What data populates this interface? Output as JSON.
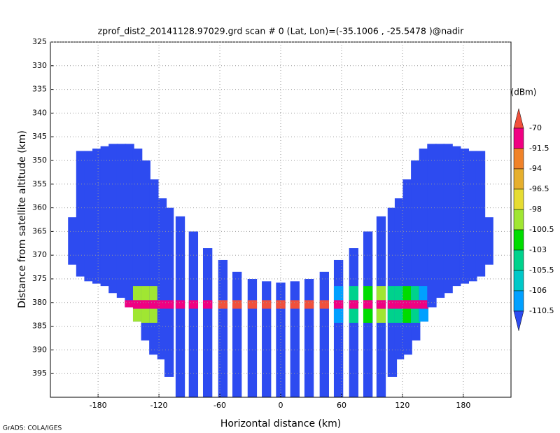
{
  "chart_data": {
    "type": "swath",
    "title": "zprof_dist2_20141128.97029.grd  scan # 0  (Lat, Lon)=(-35.1006 , -25.5478 )@nadir",
    "xlabel": "Horizontal distance (km)",
    "ylabel": "Distance from satellite altitude (km)",
    "footer": "GrADS: COLA/IGES",
    "xlim": [
      -227,
      227
    ],
    "xticks": [
      -180,
      -120,
      -60,
      0,
      60,
      120,
      180
    ],
    "ylim": [
      325,
      400
    ],
    "yticks": [
      325,
      330,
      335,
      340,
      345,
      350,
      355,
      360,
      365,
      370,
      375,
      380,
      385,
      390,
      395
    ],
    "grid": true,
    "body_value": -112,
    "surface_alt": [
      379.5,
      381.3
    ],
    "colorbar": {
      "unit": "(dBm)",
      "levels": [
        -70,
        -91.5,
        -94,
        -96.5,
        -98,
        -100.5,
        -103,
        -105.5,
        -106,
        -110.5
      ],
      "colors": [
        "#f0503c",
        "#f00082",
        "#f08228",
        "#e6af2d",
        "#e6dc32",
        "#a0e632",
        "#00dc00",
        "#00d28c",
        "#00c8c8",
        "#00a0ff",
        "#2d4bf0"
      ]
    },
    "rays": {
      "x": [
        -205,
        -197,
        -189,
        -181,
        -173,
        -165,
        -157,
        -149,
        -141,
        -133,
        -125,
        -117,
        -110,
        -99,
        -86,
        -72,
        -57,
        -43,
        -28,
        -14,
        0,
        14,
        28,
        43,
        57,
        72,
        86,
        99,
        110,
        117,
        125,
        133,
        141,
        149,
        157,
        165,
        173,
        181,
        189,
        197,
        205
      ],
      "top": [
        362,
        348,
        348,
        347.5,
        347,
        346.5,
        346.5,
        346.5,
        347.5,
        350,
        354,
        358,
        360,
        361.8,
        365,
        368.5,
        371,
        373.5,
        375,
        375.5,
        375.8,
        375.5,
        375,
        373.5,
        371,
        368.5,
        365,
        361.8,
        360,
        358,
        354,
        350,
        347.5,
        346.5,
        346.5,
        346.5,
        347,
        347.5,
        348,
        348,
        362
      ],
      "bottom": [
        372,
        374.5,
        375.5,
        376,
        376.5,
        378,
        379,
        381,
        384,
        388,
        391,
        392,
        395.7,
        400,
        400,
        400,
        400,
        400,
        400,
        400,
        400,
        400,
        400,
        400,
        400,
        400,
        400,
        400,
        395.7,
        392,
        391,
        388,
        384,
        381,
        379,
        378,
        376.5,
        376,
        375.5,
        374.5,
        372
      ],
      "surface_values": [
        null,
        null,
        null,
        null,
        null,
        null,
        -80,
        -80,
        -80,
        -80,
        -80,
        -80,
        -80,
        -80,
        -80,
        -80,
        -69,
        -69,
        -69,
        -69,
        -69,
        -69,
        -69,
        -69,
        -80,
        -80,
        -80,
        -80,
        -80,
        -80,
        -80,
        -80,
        -80,
        null,
        null,
        null,
        null,
        null,
        null,
        null,
        null
      ],
      "near_values": [
        null,
        null,
        null,
        null,
        null,
        null,
        null,
        null,
        -99,
        -99,
        -99,
        null,
        null,
        null,
        null,
        null,
        null,
        null,
        null,
        null,
        null,
        null,
        null,
        null,
        -107,
        -104,
        -102,
        -99,
        -104,
        -104,
        -102,
        -104,
        -107,
        null,
        null,
        null,
        null,
        null,
        null,
        null,
        null
      ]
    }
  }
}
